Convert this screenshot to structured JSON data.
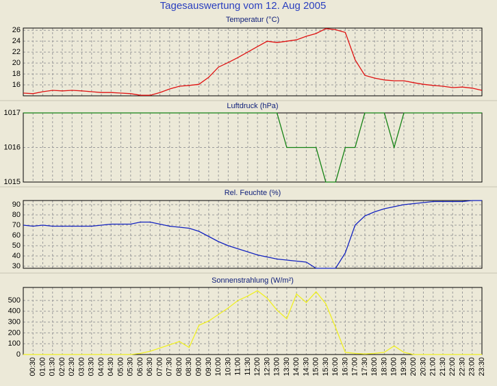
{
  "title": "Tagesauswertung vom 12. Aug 2005",
  "chart_data": [
    {
      "type": "line",
      "title": "Temperatur (°C)",
      "color": "#e01010",
      "grid": true,
      "ylim": [
        14,
        26.4
      ],
      "yticks": [
        16,
        18,
        20,
        22,
        24,
        26
      ],
      "values": [
        14.5,
        14.4,
        14.75,
        15,
        14.9,
        15,
        14.9,
        14.75,
        14.6,
        14.6,
        14.5,
        14.4,
        14.1,
        14.1,
        14.6,
        15.25,
        15.75,
        15.9,
        16.1,
        17.4,
        19.25,
        20.1,
        21,
        22,
        23,
        24,
        23.75,
        24,
        24.25,
        24.9,
        25.4,
        26.3,
        26.1,
        25.6,
        20.6,
        17.75,
        17.25,
        16.9,
        16.75,
        16.75,
        16.4,
        16.1,
        15.9,
        15.75,
        15.5,
        15.6,
        15.4,
        15
      ]
    },
    {
      "type": "line",
      "title": "Luftdruck (hPa)",
      "color": "#108010",
      "grid": true,
      "ylim": [
        1015,
        1017
      ],
      "yticks": [
        1015,
        1016,
        1017
      ],
      "values": [
        1017,
        1017,
        1017,
        1017,
        1017,
        1017,
        1017,
        1017,
        1017,
        1017,
        1017,
        1017,
        1017,
        1017,
        1017,
        1017,
        1017,
        1017,
        1017,
        1017,
        1017,
        1017,
        1017,
        1017,
        1017,
        1017,
        1017,
        1016,
        1016,
        1016,
        1016,
        1015,
        1015,
        1016,
        1016,
        1017,
        1017,
        1017,
        1016,
        1017,
        1017,
        1017,
        1017,
        1017,
        1017,
        1017,
        1017,
        1017
      ]
    },
    {
      "type": "line",
      "title": "Rel. Feuchte (%)",
      "color": "#1020c0",
      "grid": true,
      "ylim": [
        28,
        94
      ],
      "yticks": [
        30,
        40,
        50,
        60,
        70,
        80,
        90
      ],
      "values": [
        70,
        69,
        70,
        69,
        69,
        69,
        69,
        69,
        70,
        71,
        71,
        71,
        73,
        73,
        71,
        69,
        68,
        67,
        64,
        59,
        54,
        50,
        47,
        44,
        41,
        39,
        37,
        36,
        35,
        34,
        28,
        28,
        28,
        43,
        70,
        79,
        83,
        86,
        88,
        90,
        91,
        92,
        93,
        93,
        93,
        93,
        94,
        94
      ]
    },
    {
      "type": "line",
      "title": "Sonnenstrahlung (W/m²)",
      "color": "#f0f020",
      "grid": true,
      "ylim": [
        0,
        620
      ],
      "yticks": [
        0,
        100,
        200,
        300,
        400,
        500
      ],
      "categories": [
        null,
        "00:30",
        "01:00",
        "01:30",
        "02:00",
        "02:30",
        "03:00",
        "03:30",
        "04:00",
        "04:30",
        "05:00",
        "05:30",
        "06:00",
        "06:30",
        "07:00",
        "07:30",
        "08:00",
        "08:30",
        "09:00",
        "09:30",
        "10:00",
        "10:30",
        "11:00",
        "11:30",
        "12:00",
        "12:30",
        "13:00",
        "13:30",
        "14:00",
        "14:30",
        "15:00",
        "15:30",
        "16:00",
        "16:30",
        "17:00",
        "17:30",
        "18:00",
        "18:30",
        "19:00",
        "19:30",
        "20:00",
        "20:30",
        "21:00",
        "21:30",
        "22:00",
        "22:30",
        "23:00",
        "23:30"
      ],
      "values": [
        0,
        0,
        0,
        0,
        0,
        0,
        0,
        0,
        0,
        0,
        0,
        0,
        10,
        30,
        60,
        90,
        120,
        65,
        270,
        310,
        370,
        430,
        500,
        540,
        590,
        520,
        410,
        330,
        560,
        480,
        580,
        470,
        250,
        20,
        10,
        5,
        10,
        20,
        80,
        20,
        0,
        0,
        0,
        0,
        0,
        0,
        0,
        0
      ]
    }
  ]
}
